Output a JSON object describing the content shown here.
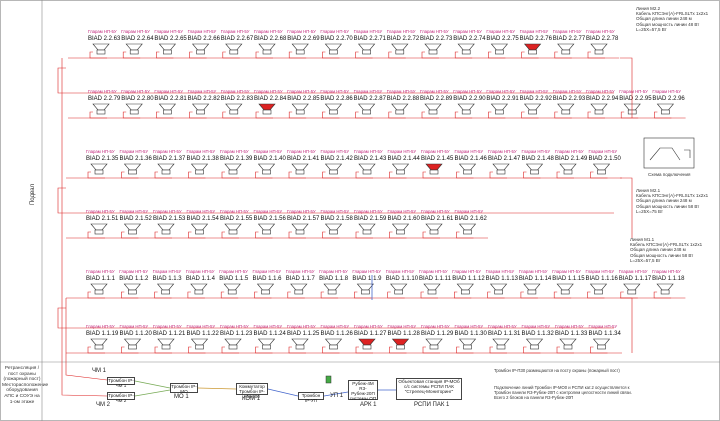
{
  "left_panel": {
    "basement_label": "Подвал",
    "info_label": "Ретрансляция / пост охраны (пожарный пост) Месторасположение оборудования АПС и СОУЭ на 1-ом этаже"
  },
  "row_label": "Гларам НП-5У",
  "rows": [
    {
      "id": "r1",
      "labels": [
        "BIAD 2.2.63",
        "BIAD 2.2.64",
        "BIAD 2.2.65",
        "BIAD 2.2.66",
        "BIAD 2.2.67",
        "BIAD 2.2.68",
        "BIAD 2.2.69",
        "BIAD 2.2.70",
        "BIAD 2.2.71",
        "BIAD 2.2.72",
        "BIAD 2.2.73",
        "BIAD 2.2.74",
        "BIAD 2.2.75",
        "BIAD 2.2.76",
        "BIAD 2.2.77",
        "BIAD 2.2.78"
      ],
      "red": [
        13
      ]
    },
    {
      "id": "r2",
      "labels": [
        "BIAD 2.2.79",
        "BIAD 2.2.80",
        "BIAD 2.2.81",
        "BIAD 2.2.82",
        "BIAD 2.2.83",
        "BIAD 2.2.84",
        "BIAD 2.2.85",
        "BIAD 2.2.86",
        "BIAD 2.2.87",
        "BIAD 2.2.88",
        "BIAD 2.2.89",
        "BIAD 2.2.90",
        "BIAD 2.2.91",
        "BIAD 2.2.92",
        "BIAD 2.2.93",
        "BIAD 2.2.94",
        "BIAD 2.2.95",
        "BIAD 2.2.96"
      ],
      "red": [
        5
      ]
    },
    {
      "id": "r3",
      "labels": [
        "BIAD 2.1.35",
        "BIAD 2.1.36",
        "BIAD 2.1.37",
        "BIAD 2.1.38",
        "BIAD 2.1.39",
        "BIAD 2.1.40",
        "BIAD 2.1.41",
        "BIAD 2.1.42",
        "BIAD 2.1.43",
        "BIAD 2.1.44",
        "BIAD 2.1.45",
        "BIAD 2.1.46",
        "BIAD 2.1.47",
        "BIAD 2.1.48",
        "BIAD 2.1.49",
        "BIAD 2.1.50"
      ],
      "red": [
        10
      ]
    },
    {
      "id": "r4",
      "labels": [
        "BIAD 2.1.51",
        "BIAD 2.1.52",
        "BIAD 2.1.53",
        "BIAD 2.1.54",
        "BIAD 2.1.55",
        "BIAD 2.1.56",
        "BIAD 2.1.57",
        "BIAD 2.1.58",
        "BIAD 2.1.59",
        "BIAD 2.1.60",
        "BIAD 2.1.61",
        "BIAD 2.1.62"
      ],
      "red": []
    },
    {
      "id": "r5",
      "labels": [
        "BIAD 1.1.1",
        "BIAD 1.1.2",
        "BIAD 1.1.3",
        "BIAD 1.1.4",
        "BIAD 1.1.5",
        "BIAD 1.1.6",
        "BIAD 1.1.7",
        "BIAD 1.1.8",
        "BIAD 1.1.9",
        "BIAD 1.1.10",
        "BIAD 1.1.11",
        "BIAD 1.1.12",
        "BIAD 1.1.13",
        "BIAD 1.1.14",
        "BIAD 1.1.15",
        "BIAD 1.1.16",
        "BIAD 1.1.17",
        "BIAD 1.1.18"
      ],
      "red": []
    },
    {
      "id": "r6",
      "labels": [
        "BIAD 1.1.19",
        "BIAD 1.1.20",
        "BIAD 1.1.21",
        "BIAD 1.1.22",
        "BIAD 1.1.23",
        "BIAD 1.1.24",
        "BIAD 1.1.25",
        "BIAD 1.1.26",
        "BIAD 1.1.27",
        "BIAD 1.1.28",
        "BIAD 1.1.29",
        "BIAD 1.1.30",
        "BIAD 1.1.31",
        "BIAD 1.1.32",
        "BIAD 1.1.33",
        "BIAD 1.1.34"
      ],
      "red": [
        8,
        9
      ]
    }
  ],
  "line_info": {
    "l22": [
      "Линия М2.2",
      "Кабель КПСЭнг(А)-FRLSLTx 1х2х1",
      "Общая длина линии 248 м",
      "Общая мощность линии 48 Вт",
      "L=25Х=57,5 Вт"
    ],
    "l21": [
      "Линия М2.1",
      "Кабель КПСЭнг(А)-FRLSLTx 1х2х1",
      "Общая длина линии 248 м",
      "Общая мощность линии 58 Вт",
      "L=25Х=75 Вт"
    ],
    "l11": [
      "Линия М1.1",
      "Кабель КПСЭнг(А)-FRLSLTx 1х2х1",
      "Общая длина линии 248 м",
      "Общая мощность линии 58 Вт",
      "L=25Х=57,5 Вт"
    ]
  },
  "amp_label": "Схема подключения",
  "equipment": {
    "chm1": "ЧМ 1",
    "chm2": "ЧМ 2",
    "tromb_chm1": "Тромбон IP-ЧМ 1",
    "tromb_chm2": "Тромбон IP-ЧМ 2",
    "mo_box": "Тромбон IP-МО",
    "mo_label": "МО 1",
    "kom_box": "Коммутатор Тромбон IP-КМ-600",
    "kom_label": "КОМ 1",
    "tromb_up": "Тромбон IP-УП",
    "up_label": "УП 1",
    "ark_box": "Рубеж-4М R3-Рубеж-20П системы ОП",
    "ark_label": "АРК 1",
    "rspi_box": "Объектовая станция IP-МОб с/с системы РСПИ ПАК \"Стрелец-Мониторинг\"",
    "rspi_label": "РСПИ ПАК 1"
  },
  "notes": {
    "top": "Тромбон IP-ПЗ0 размещаются на посту охраны (пожарный пост)",
    "bottom": "Подключение линий Тромбон IP-МО0 и РСПИ кат.2 осуществляется к Тромбон панели R3-Рубеж-20П с контролем целостности линий связи. Всего 2 блоков на панели R3-Рубеж-20П"
  }
}
